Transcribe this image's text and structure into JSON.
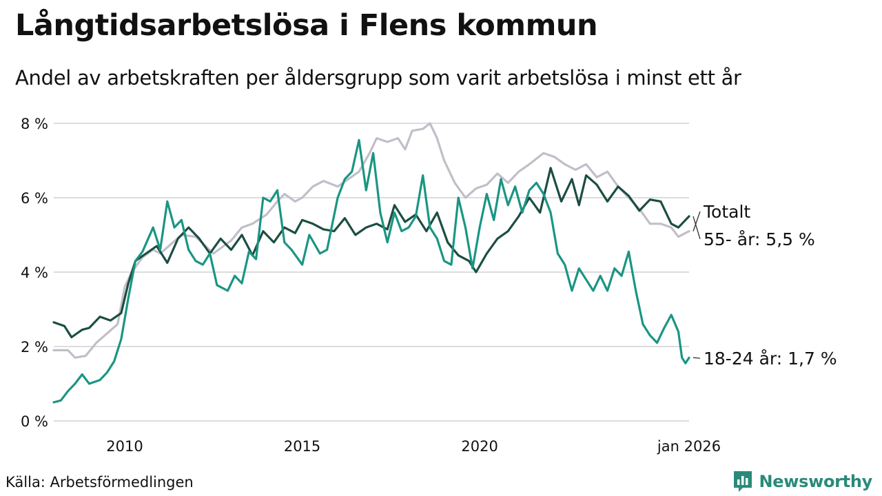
{
  "title": "Långtidsarbetslösa i Flens kommun",
  "subtitle": "Andel av arbetskraften per åldersgrupp som varit arbetslösa i minst ett år",
  "source": "Källa: Arbetsförmedlingen",
  "brand": {
    "name": "Newsworthy",
    "icon": "newsworthy-logo-icon",
    "color": "#2a8a7a"
  },
  "chart_data": {
    "type": "line",
    "title": "Långtidsarbetslösa i Flens kommun",
    "xlabel": "",
    "ylabel": "",
    "xlim": [
      2008.0,
      2025.9
    ],
    "ylim": [
      0,
      8
    ],
    "y_ticks": [
      0,
      2,
      4,
      6,
      8
    ],
    "y_tick_labels": [
      "0 %",
      "2 %",
      "4 %",
      "6 %",
      "8 %"
    ],
    "x_ticks": [
      2010,
      2015,
      2020,
      2025.9
    ],
    "x_tick_labels": [
      "2010",
      "2015",
      "2020",
      "jan 2026"
    ],
    "grid": true,
    "series": [
      {
        "name": "Totalt",
        "end_label": "Totalt",
        "color": "#c1bec9",
        "points": [
          [
            2008.0,
            1.9
          ],
          [
            2008.4,
            1.9
          ],
          [
            2008.6,
            1.7
          ],
          [
            2008.9,
            1.75
          ],
          [
            2009.2,
            2.1
          ],
          [
            2009.5,
            2.35
          ],
          [
            2009.8,
            2.6
          ],
          [
            2010.0,
            3.6
          ],
          [
            2010.2,
            4.0
          ],
          [
            2010.5,
            4.4
          ],
          [
            2010.8,
            4.6
          ],
          [
            2011.0,
            4.5
          ],
          [
            2011.3,
            4.75
          ],
          [
            2011.6,
            5.0
          ],
          [
            2012.0,
            4.95
          ],
          [
            2012.5,
            4.5
          ],
          [
            2013.0,
            4.85
          ],
          [
            2013.3,
            5.2
          ],
          [
            2013.6,
            5.3
          ],
          [
            2014.0,
            5.55
          ],
          [
            2014.3,
            5.9
          ],
          [
            2014.5,
            6.1
          ],
          [
            2014.8,
            5.9
          ],
          [
            2015.0,
            6.0
          ],
          [
            2015.3,
            6.3
          ],
          [
            2015.6,
            6.45
          ],
          [
            2016.0,
            6.3
          ],
          [
            2016.3,
            6.5
          ],
          [
            2016.6,
            6.7
          ],
          [
            2016.9,
            7.2
          ],
          [
            2017.1,
            7.6
          ],
          [
            2017.4,
            7.5
          ],
          [
            2017.7,
            7.6
          ],
          [
            2017.9,
            7.3
          ],
          [
            2018.1,
            7.8
          ],
          [
            2018.4,
            7.85
          ],
          [
            2018.6,
            8.0
          ],
          [
            2018.8,
            7.6
          ],
          [
            2019.0,
            7.0
          ],
          [
            2019.3,
            6.4
          ],
          [
            2019.6,
            6.0
          ],
          [
            2019.9,
            6.25
          ],
          [
            2020.2,
            6.35
          ],
          [
            2020.5,
            6.65
          ],
          [
            2020.8,
            6.4
          ],
          [
            2021.1,
            6.7
          ],
          [
            2021.4,
            6.9
          ],
          [
            2021.8,
            7.2
          ],
          [
            2022.1,
            7.1
          ],
          [
            2022.4,
            6.9
          ],
          [
            2022.7,
            6.75
          ],
          [
            2023.0,
            6.9
          ],
          [
            2023.3,
            6.55
          ],
          [
            2023.6,
            6.7
          ],
          [
            2023.9,
            6.3
          ],
          [
            2024.2,
            6.0
          ],
          [
            2024.5,
            5.7
          ],
          [
            2024.8,
            5.3
          ],
          [
            2025.1,
            5.3
          ],
          [
            2025.4,
            5.2
          ],
          [
            2025.6,
            4.95
          ],
          [
            2025.9,
            5.1
          ]
        ]
      },
      {
        "name": "55- år",
        "end_label": "55- år: 5,5 %",
        "color": "#1b4d43",
        "points": [
          [
            2008.0,
            2.65
          ],
          [
            2008.3,
            2.55
          ],
          [
            2008.5,
            2.25
          ],
          [
            2008.8,
            2.45
          ],
          [
            2009.0,
            2.5
          ],
          [
            2009.3,
            2.8
          ],
          [
            2009.6,
            2.7
          ],
          [
            2009.9,
            2.9
          ],
          [
            2010.1,
            3.7
          ],
          [
            2010.3,
            4.3
          ],
          [
            2010.6,
            4.5
          ],
          [
            2010.9,
            4.7
          ],
          [
            2011.2,
            4.25
          ],
          [
            2011.5,
            4.9
          ],
          [
            2011.8,
            5.2
          ],
          [
            2012.1,
            4.9
          ],
          [
            2012.4,
            4.5
          ],
          [
            2012.7,
            4.9
          ],
          [
            2013.0,
            4.6
          ],
          [
            2013.3,
            5.0
          ],
          [
            2013.6,
            4.45
          ],
          [
            2013.9,
            5.1
          ],
          [
            2014.2,
            4.8
          ],
          [
            2014.5,
            5.2
          ],
          [
            2014.8,
            5.05
          ],
          [
            2015.0,
            5.4
          ],
          [
            2015.3,
            5.3
          ],
          [
            2015.6,
            5.15
          ],
          [
            2015.9,
            5.1
          ],
          [
            2016.2,
            5.45
          ],
          [
            2016.5,
            5.0
          ],
          [
            2016.8,
            5.2
          ],
          [
            2017.1,
            5.3
          ],
          [
            2017.4,
            5.15
          ],
          [
            2017.6,
            5.8
          ],
          [
            2017.9,
            5.35
          ],
          [
            2018.2,
            5.55
          ],
          [
            2018.5,
            5.1
          ],
          [
            2018.8,
            5.6
          ],
          [
            2019.1,
            4.8
          ],
          [
            2019.4,
            4.45
          ],
          [
            2019.7,
            4.3
          ],
          [
            2019.9,
            4.0
          ],
          [
            2020.2,
            4.5
          ],
          [
            2020.5,
            4.9
          ],
          [
            2020.8,
            5.1
          ],
          [
            2021.1,
            5.5
          ],
          [
            2021.4,
            6.0
          ],
          [
            2021.7,
            5.6
          ],
          [
            2022.0,
            6.8
          ],
          [
            2022.3,
            5.9
          ],
          [
            2022.6,
            6.5
          ],
          [
            2022.8,
            5.8
          ],
          [
            2023.0,
            6.6
          ],
          [
            2023.3,
            6.35
          ],
          [
            2023.6,
            5.9
          ],
          [
            2023.9,
            6.3
          ],
          [
            2024.2,
            6.05
          ],
          [
            2024.5,
            5.65
          ],
          [
            2024.8,
            5.95
          ],
          [
            2025.1,
            5.9
          ],
          [
            2025.4,
            5.3
          ],
          [
            2025.6,
            5.2
          ],
          [
            2025.9,
            5.5
          ]
        ]
      },
      {
        "name": "18-24 år",
        "end_label": "18-24 år: 1,7 %",
        "color": "#1a9583",
        "points": [
          [
            2008.0,
            0.5
          ],
          [
            2008.2,
            0.55
          ],
          [
            2008.4,
            0.8
          ],
          [
            2008.6,
            1.0
          ],
          [
            2008.8,
            1.25
          ],
          [
            2009.0,
            1.0
          ],
          [
            2009.3,
            1.1
          ],
          [
            2009.5,
            1.3
          ],
          [
            2009.7,
            1.6
          ],
          [
            2009.9,
            2.2
          ],
          [
            2010.1,
            3.3
          ],
          [
            2010.3,
            4.3
          ],
          [
            2010.5,
            4.55
          ],
          [
            2010.8,
            5.2
          ],
          [
            2011.0,
            4.6
          ],
          [
            2011.2,
            5.9
          ],
          [
            2011.4,
            5.2
          ],
          [
            2011.6,
            5.4
          ],
          [
            2011.8,
            4.6
          ],
          [
            2012.0,
            4.3
          ],
          [
            2012.2,
            4.2
          ],
          [
            2012.4,
            4.5
          ],
          [
            2012.6,
            3.65
          ],
          [
            2012.9,
            3.5
          ],
          [
            2013.1,
            3.9
          ],
          [
            2013.3,
            3.7
          ],
          [
            2013.5,
            4.55
          ],
          [
            2013.7,
            4.35
          ],
          [
            2013.9,
            6.0
          ],
          [
            2014.1,
            5.9
          ],
          [
            2014.3,
            6.2
          ],
          [
            2014.5,
            4.8
          ],
          [
            2014.7,
            4.6
          ],
          [
            2015.0,
            4.2
          ],
          [
            2015.2,
            5.0
          ],
          [
            2015.5,
            4.5
          ],
          [
            2015.7,
            4.6
          ],
          [
            2016.0,
            6.0
          ],
          [
            2016.2,
            6.5
          ],
          [
            2016.4,
            6.7
          ],
          [
            2016.6,
            7.55
          ],
          [
            2016.8,
            6.2
          ],
          [
            2017.0,
            7.2
          ],
          [
            2017.2,
            5.6
          ],
          [
            2017.4,
            4.8
          ],
          [
            2017.6,
            5.6
          ],
          [
            2017.8,
            5.1
          ],
          [
            2018.0,
            5.2
          ],
          [
            2018.2,
            5.5
          ],
          [
            2018.4,
            6.6
          ],
          [
            2018.6,
            5.2
          ],
          [
            2018.8,
            4.9
          ],
          [
            2019.0,
            4.3
          ],
          [
            2019.2,
            4.2
          ],
          [
            2019.4,
            6.0
          ],
          [
            2019.6,
            5.2
          ],
          [
            2019.8,
            4.1
          ],
          [
            2020.0,
            5.2
          ],
          [
            2020.2,
            6.1
          ],
          [
            2020.4,
            5.4
          ],
          [
            2020.6,
            6.5
          ],
          [
            2020.8,
            5.8
          ],
          [
            2021.0,
            6.3
          ],
          [
            2021.2,
            5.6
          ],
          [
            2021.4,
            6.2
          ],
          [
            2021.6,
            6.4
          ],
          [
            2021.8,
            6.1
          ],
          [
            2022.0,
            5.6
          ],
          [
            2022.2,
            4.5
          ],
          [
            2022.4,
            4.2
          ],
          [
            2022.6,
            3.5
          ],
          [
            2022.8,
            4.1
          ],
          [
            2023.0,
            3.8
          ],
          [
            2023.2,
            3.5
          ],
          [
            2023.4,
            3.9
          ],
          [
            2023.6,
            3.5
          ],
          [
            2023.8,
            4.1
          ],
          [
            2024.0,
            3.9
          ],
          [
            2024.2,
            4.55
          ],
          [
            2024.4,
            3.5
          ],
          [
            2024.6,
            2.6
          ],
          [
            2024.8,
            2.3
          ],
          [
            2025.0,
            2.1
          ],
          [
            2025.2,
            2.5
          ],
          [
            2025.4,
            2.85
          ],
          [
            2025.6,
            2.4
          ],
          [
            2025.7,
            1.7
          ],
          [
            2025.8,
            1.55
          ],
          [
            2025.9,
            1.7
          ]
        ]
      }
    ]
  }
}
